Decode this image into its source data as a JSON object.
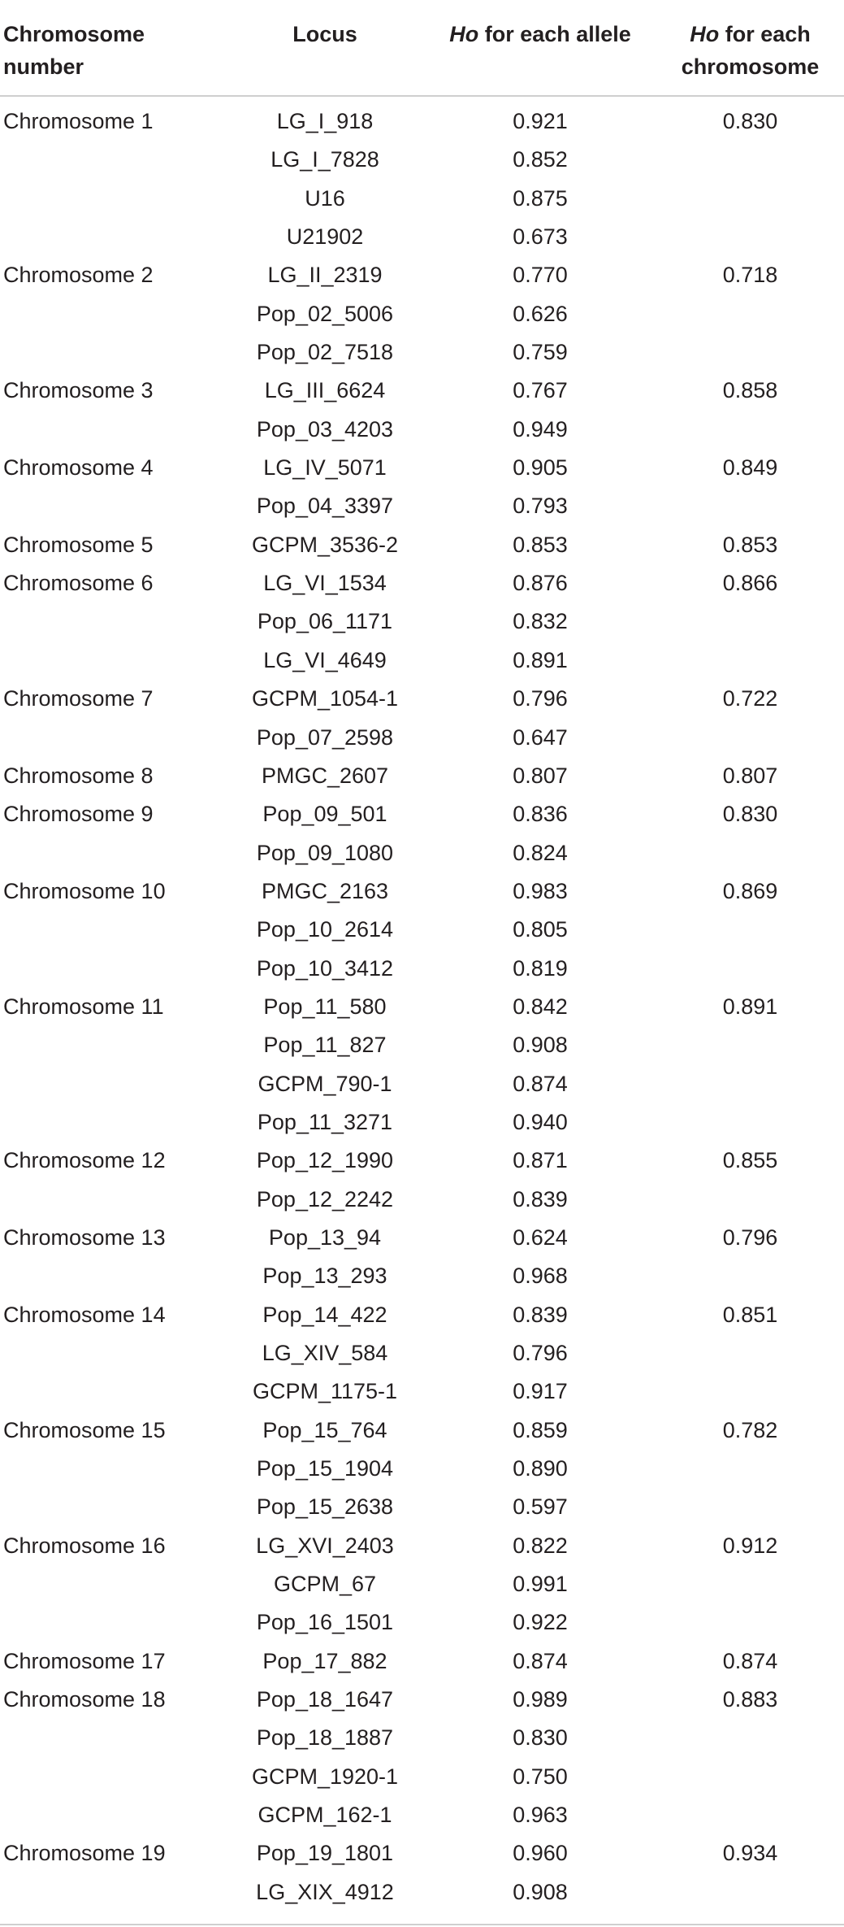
{
  "table": {
    "headers": {
      "chromosome": "Chromosome number",
      "locus": "Locus",
      "allele_prefix": "Ho",
      "allele_suffix": " for each allele",
      "chrom_prefix": "Ho",
      "chrom_suffix": " for each chromosome"
    },
    "rows": [
      {
        "chromosome": "Chromosome 1",
        "locus": "LG_I_918",
        "ho_allele": "0.921",
        "ho_chromosome": "0.830"
      },
      {
        "chromosome": "",
        "locus": "LG_I_7828",
        "ho_allele": "0.852",
        "ho_chromosome": ""
      },
      {
        "chromosome": "",
        "locus": "U16",
        "ho_allele": "0.875",
        "ho_chromosome": ""
      },
      {
        "chromosome": "",
        "locus": "U21902",
        "ho_allele": "0.673",
        "ho_chromosome": ""
      },
      {
        "chromosome": "Chromosome 2",
        "locus": "LG_II_2319",
        "ho_allele": "0.770",
        "ho_chromosome": "0.718"
      },
      {
        "chromosome": "",
        "locus": "Pop_02_5006",
        "ho_allele": "0.626",
        "ho_chromosome": ""
      },
      {
        "chromosome": "",
        "locus": "Pop_02_7518",
        "ho_allele": "0.759",
        "ho_chromosome": ""
      },
      {
        "chromosome": "Chromosome 3",
        "locus": "LG_III_6624",
        "ho_allele": "0.767",
        "ho_chromosome": "0.858"
      },
      {
        "chromosome": "",
        "locus": "Pop_03_4203",
        "ho_allele": "0.949",
        "ho_chromosome": ""
      },
      {
        "chromosome": "Chromosome 4",
        "locus": "LG_IV_5071",
        "ho_allele": "0.905",
        "ho_chromosome": "0.849"
      },
      {
        "chromosome": "",
        "locus": "Pop_04_3397",
        "ho_allele": "0.793",
        "ho_chromosome": ""
      },
      {
        "chromosome": "Chromosome 5",
        "locus": "GCPM_3536-2",
        "ho_allele": "0.853",
        "ho_chromosome": "0.853"
      },
      {
        "chromosome": "Chromosome 6",
        "locus": "LG_VI_1534",
        "ho_allele": "0.876",
        "ho_chromosome": "0.866"
      },
      {
        "chromosome": "",
        "locus": "Pop_06_1171",
        "ho_allele": "0.832",
        "ho_chromosome": ""
      },
      {
        "chromosome": "",
        "locus": "LG_VI_4649",
        "ho_allele": "0.891",
        "ho_chromosome": ""
      },
      {
        "chromosome": "Chromosome 7",
        "locus": "GCPM_1054-1",
        "ho_allele": "0.796",
        "ho_chromosome": "0.722"
      },
      {
        "chromosome": "",
        "locus": "Pop_07_2598",
        "ho_allele": "0.647",
        "ho_chromosome": ""
      },
      {
        "chromosome": "Chromosome 8",
        "locus": "PMGC_2607",
        "ho_allele": "0.807",
        "ho_chromosome": "0.807"
      },
      {
        "chromosome": "Chromosome 9",
        "locus": "Pop_09_501",
        "ho_allele": "0.836",
        "ho_chromosome": "0.830"
      },
      {
        "chromosome": "",
        "locus": "Pop_09_1080",
        "ho_allele": "0.824",
        "ho_chromosome": ""
      },
      {
        "chromosome": "Chromosome 10",
        "locus": "PMGC_2163",
        "ho_allele": "0.983",
        "ho_chromosome": "0.869"
      },
      {
        "chromosome": "",
        "locus": "Pop_10_2614",
        "ho_allele": "0.805",
        "ho_chromosome": ""
      },
      {
        "chromosome": "",
        "locus": "Pop_10_3412",
        "ho_allele": "0.819",
        "ho_chromosome": ""
      },
      {
        "chromosome": "Chromosome 11",
        "locus": "Pop_11_580",
        "ho_allele": "0.842",
        "ho_chromosome": "0.891"
      },
      {
        "chromosome": "",
        "locus": "Pop_11_827",
        "ho_allele": "0.908",
        "ho_chromosome": ""
      },
      {
        "chromosome": "",
        "locus": "GCPM_790-1",
        "ho_allele": "0.874",
        "ho_chromosome": ""
      },
      {
        "chromosome": "",
        "locus": "Pop_11_3271",
        "ho_allele": "0.940",
        "ho_chromosome": ""
      },
      {
        "chromosome": "Chromosome 12",
        "locus": "Pop_12_1990",
        "ho_allele": "0.871",
        "ho_chromosome": "0.855"
      },
      {
        "chromosome": "",
        "locus": "Pop_12_2242",
        "ho_allele": "0.839",
        "ho_chromosome": ""
      },
      {
        "chromosome": "Chromosome 13",
        "locus": "Pop_13_94",
        "ho_allele": "0.624",
        "ho_chromosome": "0.796"
      },
      {
        "chromosome": "",
        "locus": "Pop_13_293",
        "ho_allele": "0.968",
        "ho_chromosome": ""
      },
      {
        "chromosome": "Chromosome 14",
        "locus": "Pop_14_422",
        "ho_allele": "0.839",
        "ho_chromosome": "0.851"
      },
      {
        "chromosome": "",
        "locus": "LG_XIV_584",
        "ho_allele": "0.796",
        "ho_chromosome": ""
      },
      {
        "chromosome": "",
        "locus": "GCPM_1175-1",
        "ho_allele": "0.917",
        "ho_chromosome": ""
      },
      {
        "chromosome": "Chromosome 15",
        "locus": "Pop_15_764",
        "ho_allele": "0.859",
        "ho_chromosome": "0.782"
      },
      {
        "chromosome": "",
        "locus": "Pop_15_1904",
        "ho_allele": "0.890",
        "ho_chromosome": ""
      },
      {
        "chromosome": "",
        "locus": "Pop_15_2638",
        "ho_allele": "0.597",
        "ho_chromosome": ""
      },
      {
        "chromosome": "Chromosome 16",
        "locus": "LG_XVI_2403",
        "ho_allele": "0.822",
        "ho_chromosome": "0.912"
      },
      {
        "chromosome": "",
        "locus": "GCPM_67",
        "ho_allele": "0.991",
        "ho_chromosome": ""
      },
      {
        "chromosome": "",
        "locus": "Pop_16_1501",
        "ho_allele": "0.922",
        "ho_chromosome": ""
      },
      {
        "chromosome": "Chromosome 17",
        "locus": "Pop_17_882",
        "ho_allele": "0.874",
        "ho_chromosome": "0.874"
      },
      {
        "chromosome": "Chromosome 18",
        "locus": "Pop_18_1647",
        "ho_allele": "0.989",
        "ho_chromosome": "0.883"
      },
      {
        "chromosome": "",
        "locus": "Pop_18_1887",
        "ho_allele": "0.830",
        "ho_chromosome": ""
      },
      {
        "chromosome": "",
        "locus": "GCPM_1920-1",
        "ho_allele": "0.750",
        "ho_chromosome": ""
      },
      {
        "chromosome": "",
        "locus": "GCPM_162-1",
        "ho_allele": "0.963",
        "ho_chromosome": ""
      },
      {
        "chromosome": "Chromosome 19",
        "locus": "Pop_19_1801",
        "ho_allele": "0.960",
        "ho_chromosome": "0.934"
      },
      {
        "chromosome": "",
        "locus": "LG_XIX_4912",
        "ho_allele": "0.908",
        "ho_chromosome": ""
      }
    ]
  }
}
